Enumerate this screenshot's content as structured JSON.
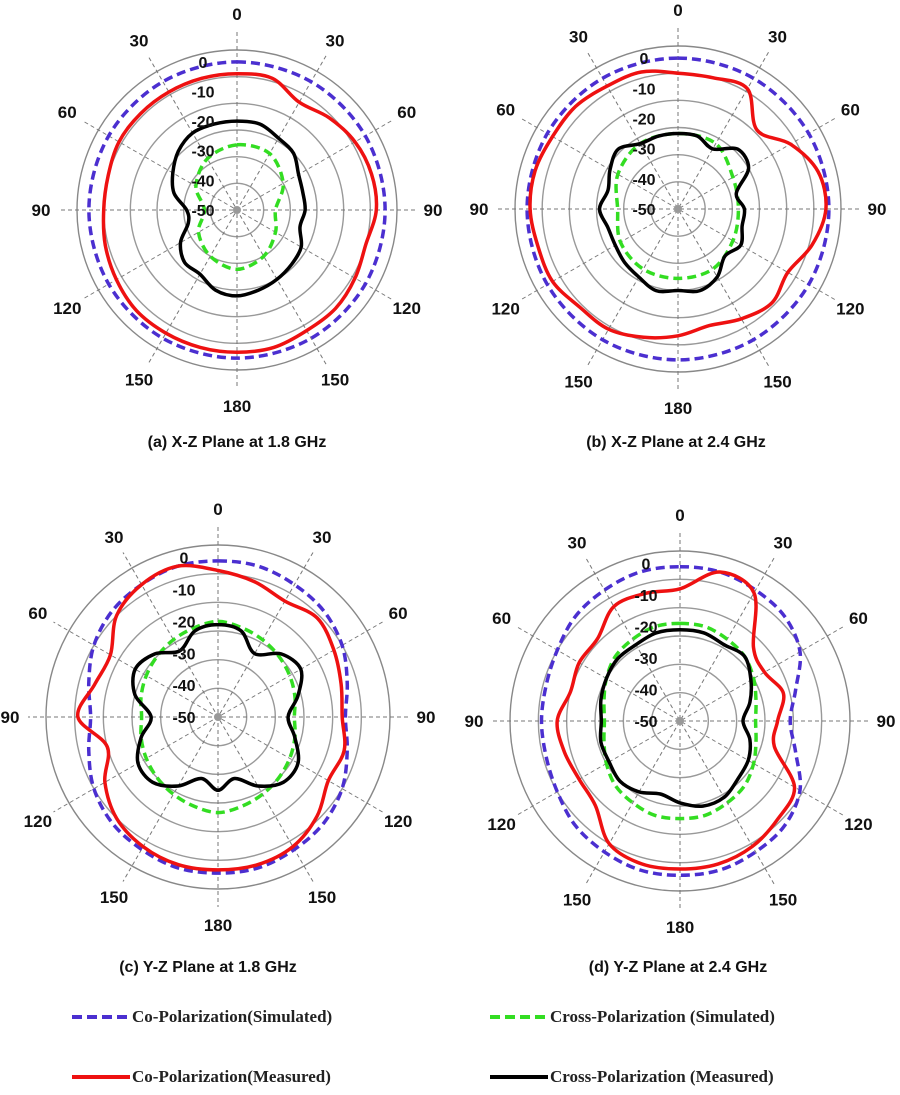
{
  "legend": [
    {
      "name": "Co-Polarization(Simulated)",
      "color": "#4b2fd0",
      "dash": true
    },
    {
      "name": "Cross-Polarization (Simulated)",
      "color": "#33dd22",
      "dash": true
    },
    {
      "name": "Co-Polarization(Measured)",
      "color": "#ee1111",
      "dash": false
    },
    {
      "name": "Cross-Polarization (Measured)",
      "color": "#000000",
      "dash": false
    }
  ],
  "chart_data": [
    {
      "type": "polar",
      "title": "(a) X-Z Plane at 1.8 GHz",
      "angle_labels": [
        "0",
        "30",
        "60",
        "90",
        "120",
        "150",
        "180",
        "150",
        "120",
        "90",
        "60",
        "30"
      ],
      "radial_ticks": [
        0,
        -10,
        -20,
        -30,
        -40,
        -50
      ],
      "rlim": [
        -50,
        0
      ],
      "series": [
        {
          "name": "Co-Polarization(Simulated)",
          "theta": [
            0,
            30,
            60,
            90,
            120,
            150,
            180,
            210,
            240,
            270,
            300,
            330
          ],
          "values": [
            0,
            0,
            0,
            0,
            0,
            0,
            0,
            0,
            0,
            0,
            0,
            0
          ]
        },
        {
          "name": "Co-Polarization(Measured)",
          "theta": [
            0,
            15,
            30,
            45,
            60,
            75,
            90,
            105,
            120,
            135,
            150,
            165,
            180,
            195,
            210,
            225,
            240,
            255,
            270,
            285,
            300,
            315,
            330,
            345
          ],
          "values": [
            -4,
            -4,
            -8,
            -6,
            -4,
            -3,
            -3,
            -5,
            -4,
            -3,
            -3,
            -2,
            -2,
            -2,
            -2,
            -2,
            -3,
            -4,
            -5,
            -5,
            -4,
            -4,
            -4,
            -4
          ]
        },
        {
          "name": "Cross-Polarization (Simulated)",
          "theta": [
            0,
            30,
            60,
            90,
            120,
            150,
            180,
            210,
            240,
            270,
            300,
            330
          ],
          "values": [
            -28,
            -28,
            -32,
            -37,
            -35,
            -32,
            -30,
            -32,
            -35,
            -39,
            -34,
            -30
          ]
        },
        {
          "name": "Cross-Polarization (Measured)",
          "theta": [
            0,
            15,
            30,
            45,
            60,
            75,
            90,
            105,
            120,
            135,
            150,
            165,
            180,
            195,
            210,
            225,
            240,
            255,
            270,
            285,
            300,
            315,
            330,
            345
          ],
          "values": [
            -20,
            -20,
            -22,
            -23,
            -26,
            -27,
            -27,
            -28,
            -25,
            -24,
            -23,
            -22,
            -21,
            -22,
            -25,
            -25,
            -28,
            -33,
            -33,
            -28,
            -25,
            -22,
            -20,
            -20
          ]
        }
      ]
    },
    {
      "type": "polar",
      "title": "(b) X-Z Plane at 2.4 GHz",
      "angle_labels": [
        "0",
        "30",
        "60",
        "90",
        "120",
        "150",
        "180",
        "150",
        "120",
        "90",
        "60",
        "30"
      ],
      "radial_ticks": [
        0,
        -10,
        -20,
        -30,
        -40,
        -50
      ],
      "rlim": [
        -50,
        0
      ],
      "series": [
        {
          "name": "Co-Polarization(Simulated)",
          "theta": [
            0,
            30,
            60,
            90,
            120,
            150,
            180,
            210,
            240,
            270,
            300,
            330
          ],
          "values": [
            0,
            0,
            0,
            0,
            0,
            0,
            0,
            0,
            0,
            0,
            0,
            0
          ]
        },
        {
          "name": "Co-Polarization(Measured)",
          "theta": [
            0,
            15,
            30,
            45,
            60,
            75,
            90,
            105,
            120,
            135,
            150,
            165,
            180,
            195,
            210,
            225,
            240,
            255,
            270,
            285,
            300,
            315,
            330,
            345
          ],
          "values": [
            -5,
            -5,
            -4,
            -13,
            -7,
            -2,
            -1,
            -4,
            -8,
            -6,
            -8,
            -10,
            -8,
            -6,
            -4,
            -4,
            -2,
            -2,
            -1,
            -1,
            -2,
            -2,
            -3,
            -3
          ]
        },
        {
          "name": "Cross-Polarization (Simulated)",
          "theta": [
            0,
            30,
            60,
            90,
            120,
            150,
            180,
            210,
            240,
            270,
            300,
            330
          ],
          "values": [
            -25,
            -25,
            -29,
            -30,
            -29,
            -27,
            -27,
            -27,
            -28,
            -30,
            -27,
            -25
          ]
        },
        {
          "name": "Cross-Polarization (Measured)",
          "theta": [
            0,
            15,
            30,
            45,
            60,
            75,
            90,
            105,
            120,
            135,
            150,
            165,
            180,
            195,
            210,
            225,
            240,
            255,
            270,
            285,
            300,
            315,
            330,
            345
          ],
          "values": [
            -25,
            -25,
            -27,
            -22,
            -23,
            -30,
            -28,
            -28,
            -26,
            -28,
            -24,
            -22,
            -23,
            -22,
            -24,
            -25,
            -26,
            -26,
            -24,
            -26,
            -24,
            -22,
            -25,
            -25
          ]
        }
      ]
    },
    {
      "type": "polar",
      "title": "(c) Y-Z Plane at 1.8 GHz",
      "angle_labels": [
        "0",
        "30",
        "60",
        "90",
        "120",
        "150",
        "180",
        "150",
        "120",
        "90",
        "60",
        "30"
      ],
      "radial_ticks": [
        0,
        -10,
        -20,
        -30,
        -40,
        -50
      ],
      "rlim": [
        -50,
        0
      ],
      "series": [
        {
          "name": "Co-Polarization(Simulated)",
          "theta": [
            0,
            15,
            30,
            45,
            60,
            75,
            90,
            105,
            120,
            135,
            150,
            165,
            180,
            195,
            210,
            225,
            240,
            255,
            270,
            285,
            300,
            315,
            330,
            345
          ],
          "values": [
            -1,
            -1,
            -2,
            -3,
            -5,
            -8,
            -10,
            -8,
            -5,
            -3,
            -2,
            -1,
            -1,
            -1,
            -2,
            -3,
            -5,
            -8,
            -10,
            -8,
            -5,
            -3,
            -2,
            -1
          ]
        },
        {
          "name": "Co-Polarization(Measured)",
          "theta": [
            0,
            15,
            30,
            45,
            60,
            75,
            90,
            105,
            120,
            135,
            150,
            165,
            180,
            195,
            210,
            225,
            240,
            255,
            270,
            285,
            300,
            315,
            330,
            345
          ],
          "values": [
            -4,
            -6,
            -8,
            -6,
            -8,
            -10,
            -11,
            -9,
            -10,
            -6,
            -3,
            -2,
            -2,
            -2,
            -3,
            -5,
            -9,
            -14,
            -6,
            -10,
            -11,
            -5,
            -2,
            -1
          ]
        },
        {
          "name": "Cross-Polarization (Simulated)",
          "theta": [
            0,
            15,
            30,
            45,
            60,
            75,
            90,
            105,
            120,
            135,
            150,
            165,
            180,
            195,
            210,
            225,
            240,
            255,
            270,
            285,
            300,
            315,
            330,
            345
          ],
          "values": [
            -20,
            -21,
            -22,
            -23,
            -24,
            -25,
            -26,
            -25,
            -24,
            -23,
            -22,
            -21,
            -20,
            -21,
            -22,
            -23,
            -24,
            -25,
            -26,
            -25,
            -24,
            -23,
            -22,
            -21
          ]
        },
        {
          "name": "Cross-Polarization (Measured)",
          "theta": [
            0,
            15,
            30,
            45,
            60,
            75,
            90,
            105,
            120,
            135,
            150,
            165,
            180,
            195,
            210,
            225,
            240,
            255,
            270,
            285,
            300,
            315,
            330,
            345
          ],
          "values": [
            -21,
            -22,
            -27,
            -22,
            -20,
            -24,
            -28,
            -25,
            -21,
            -21,
            -25,
            -30,
            -27,
            -30,
            -25,
            -21,
            -21,
            -25,
            -29,
            -23,
            -20,
            -22,
            -26,
            -22
          ]
        }
      ]
    },
    {
      "type": "polar",
      "title": "(d) Y-Z Plane at 2.4 GHz",
      "angle_labels": [
        "0",
        "30",
        "60",
        "90",
        "120",
        "150",
        "180",
        "150",
        "120",
        "90",
        "60",
        "30"
      ],
      "radial_ticks": [
        0,
        -10,
        -20,
        -30,
        -40,
        -50
      ],
      "rlim": [
        -50,
        0
      ],
      "series": [
        {
          "name": "Co-Polarization(Simulated)",
          "theta": [
            0,
            15,
            30,
            45,
            60,
            75,
            90,
            105,
            120,
            135,
            150,
            165,
            180,
            195,
            210,
            225,
            240,
            255,
            270,
            285,
            300,
            315,
            330,
            345
          ],
          "values": [
            -1,
            -1,
            -2,
            -3,
            -6,
            -12,
            -15,
            -12,
            -6,
            -3,
            -2,
            -1,
            -1,
            -1,
            -2,
            -3,
            -5,
            -6,
            -6,
            -6,
            -5,
            -3,
            -2,
            -1
          ]
        },
        {
          "name": "Co-Polarization(Measured)",
          "theta": [
            0,
            15,
            30,
            45,
            60,
            75,
            90,
            105,
            120,
            135,
            150,
            165,
            180,
            195,
            210,
            225,
            240,
            255,
            270,
            285,
            300,
            315,
            330,
            345
          ],
          "values": [
            -8,
            -1,
            -3,
            -17,
            -19,
            -16,
            -19,
            -19,
            -8,
            -6,
            -4,
            -3,
            -3,
            -3,
            -5,
            -12,
            -13,
            -12,
            -11,
            -14,
            -13,
            -13,
            -8,
            -8
          ]
        },
        {
          "name": "Cross-Polarization (Simulated)",
          "theta": [
            0,
            15,
            30,
            45,
            60,
            75,
            90,
            105,
            120,
            135,
            150,
            165,
            180,
            195,
            210,
            225,
            240,
            255,
            270,
            285,
            300,
            315,
            330,
            345
          ],
          "values": [
            -19,
            -19,
            -20,
            -21,
            -23,
            -25,
            -26,
            -25,
            -23,
            -21,
            -20,
            -19,
            -19,
            -19,
            -20,
            -21,
            -23,
            -25,
            -26,
            -25,
            -23,
            -21,
            -20,
            -19
          ]
        },
        {
          "name": "Cross-Polarization (Measured)",
          "theta": [
            0,
            15,
            30,
            45,
            60,
            75,
            90,
            105,
            120,
            135,
            150,
            165,
            180,
            195,
            210,
            225,
            240,
            255,
            270,
            285,
            300,
            315,
            330,
            345
          ],
          "values": [
            -21,
            -21,
            -22,
            -21,
            -24,
            -27,
            -30,
            -27,
            -25,
            -24,
            -22,
            -22,
            -24,
            -26,
            -24,
            -23,
            -24,
            -24,
            -25,
            -24,
            -23,
            -22,
            -22,
            -21
          ]
        }
      ]
    }
  ]
}
